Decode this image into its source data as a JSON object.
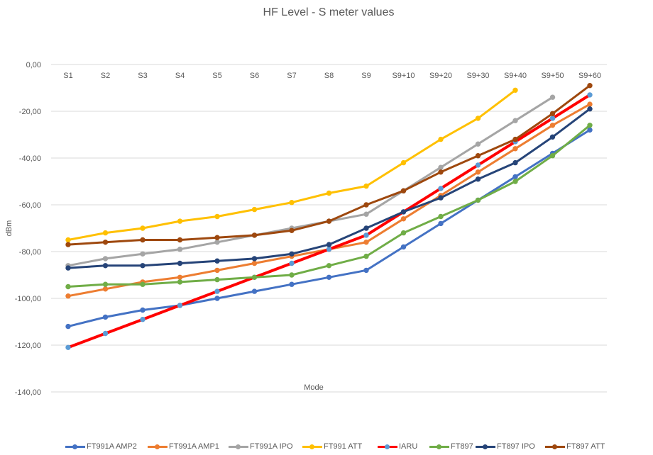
{
  "chart_data": {
    "type": "line",
    "title": "HF Level - S meter values",
    "xlabel": "Mode",
    "ylabel": "dBm",
    "categories": [
      "S1",
      "S2",
      "S3",
      "S4",
      "S5",
      "S6",
      "S7",
      "S8",
      "S9",
      "S9+10",
      "S9+20",
      "S9+30",
      "S9+40",
      "S9+50",
      "S9+60"
    ],
    "ylim": [
      -140,
      0
    ],
    "y_ticks": [
      "0,00",
      "-20,00",
      "-40,00",
      "-60,00",
      "-80,00",
      "-100,00",
      "-120,00",
      "-140,00"
    ],
    "y_tick_values": [
      0,
      -20,
      -40,
      -60,
      -80,
      -100,
      -120,
      -140
    ],
    "grid": "horizontal",
    "legend_position": "bottom",
    "series": [
      {
        "name": "FT991A AMP2",
        "color": "#4472C4",
        "values": [
          -112,
          -108,
          -105,
          -103,
          -100,
          -97,
          -94,
          -91,
          -88,
          -78,
          -68,
          -58,
          -48,
          -38,
          -28
        ]
      },
      {
        "name": "FT991A AMP1",
        "color": "#ED7D31",
        "values": [
          -99,
          -96,
          -93,
          -91,
          -88,
          -85,
          -82,
          -79,
          -76,
          -66,
          -56,
          -46,
          -36,
          -26,
          -17
        ]
      },
      {
        "name": "FT991A IPO",
        "color": "#A5A5A5",
        "values": [
          -86,
          -83,
          -81,
          -79,
          -76,
          -73,
          -70,
          -67,
          -64,
          -54,
          -44,
          -34,
          -24,
          -14,
          null
        ]
      },
      {
        "name": "FT991 ATT",
        "color": "#FFC000",
        "values": [
          -75,
          -72,
          -70,
          -67,
          -65,
          -62,
          -59,
          -55,
          -52,
          -42,
          -32,
          -23,
          -11,
          null,
          null
        ]
      },
      {
        "name": "IARU",
        "color": "#FF0000",
        "values": [
          -121,
          -115,
          -109,
          -103,
          -97,
          -91,
          -85,
          -79,
          -73,
          -63,
          -53,
          -43,
          -33,
          -23,
          -13
        ]
      },
      {
        "name": "FT897",
        "color": "#70AD47",
        "values": [
          -95,
          -94,
          -94,
          -93,
          -92,
          -91,
          -90,
          -86,
          -82,
          -72,
          -65,
          -58,
          -50,
          -39,
          -26
        ]
      },
      {
        "name": "FT897 IPO",
        "color": "#264478",
        "values": [
          -87,
          -86,
          -86,
          -85,
          -84,
          -83,
          -81,
          -77,
          -70,
          -63,
          -57,
          -49,
          -42,
          -31,
          -19
        ]
      },
      {
        "name": "FT897 ATT",
        "color": "#9E480E",
        "values": [
          -77,
          -76,
          -75,
          -75,
          -74,
          -73,
          -71,
          -67,
          -60,
          -54,
          -46,
          -39,
          -32,
          -21,
          -9
        ]
      }
    ]
  }
}
